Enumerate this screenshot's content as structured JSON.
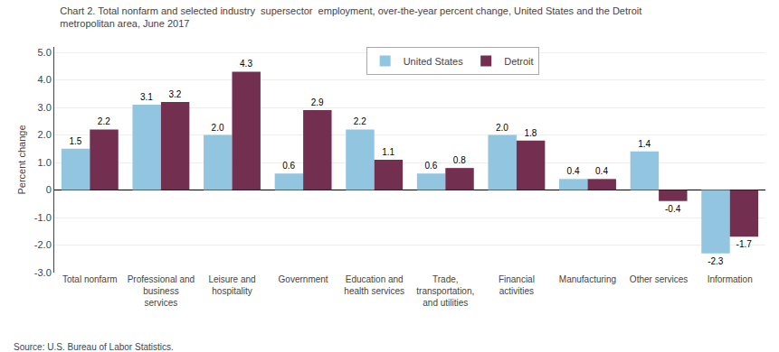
{
  "chart_data": {
    "type": "bar",
    "title": "Chart 2. Total nonfarm and selected industry  supersector  employment, over-the-year percent change, United States and the Detroit\nmetropolitan area, June 2017",
    "ylabel": "Percent change",
    "source": "Source: U.S. Bureau of Labor Statistics.",
    "categories": [
      "Total nonfarm",
      "Professional and\nbusiness\nservices",
      "Leisure and\nhospitality",
      "Government",
      "Education and\nhealth services",
      "Trade,\ntransportation,\nand utilities",
      "Financial\nactivities",
      "Manufacturing",
      "Other services",
      "Information"
    ],
    "series": [
      {
        "name": "United States",
        "color": "#92C5E0",
        "values": [
          1.5,
          3.1,
          2.0,
          0.6,
          2.2,
          0.6,
          2.0,
          0.4,
          1.4,
          -2.3
        ],
        "value_labels": [
          "1.5",
          "3.1",
          "2.0",
          "0.6",
          "2.2",
          "0.6",
          "2.0",
          "0.4",
          "1.4",
          "-2.3"
        ]
      },
      {
        "name": "Detroit",
        "color": "#722F50",
        "values": [
          2.2,
          3.2,
          4.3,
          2.9,
          1.1,
          0.8,
          1.8,
          0.4,
          -0.4,
          -1.7
        ],
        "value_labels": [
          "2.2",
          "3.2",
          "4.3",
          "2.9",
          "1.1",
          "0.8",
          "1.8",
          "0.4",
          "-0.4",
          "-1.7"
        ]
      }
    ],
    "ylim": [
      -3.0,
      5.2
    ],
    "yticks": [
      {
        "value": -3,
        "label": "-3.0"
      },
      {
        "value": -2,
        "label": "-2.0"
      },
      {
        "value": -1,
        "label": "-1.0"
      },
      0,
      {
        "value": 1,
        "label": "1.0"
      },
      {
        "value": 2,
        "label": "2.0"
      },
      {
        "value": 3,
        "label": "3.0"
      },
      {
        "value": 4,
        "label": "4.0"
      },
      {
        "value": 5,
        "label": "5.0"
      }
    ],
    "grid": true,
    "legend": "top",
    "data_labels": true
  }
}
